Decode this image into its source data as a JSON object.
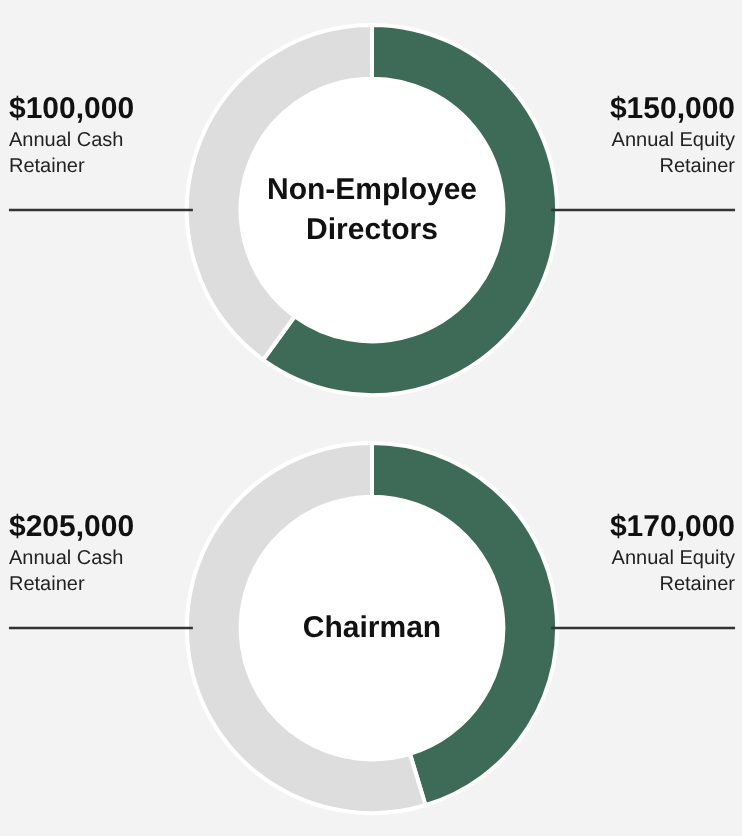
{
  "chart_data": [
    {
      "type": "donut",
      "title": "Non-Employee Directors",
      "categories": [
        "Annual Equity Retainer",
        "Annual Cash Retainer"
      ],
      "values": [
        150000,
        100000
      ],
      "value_labels": [
        "$150,000",
        "$100,000"
      ],
      "colors": [
        "#3e6b58",
        "#dddddd"
      ]
    },
    {
      "type": "donut",
      "title": "Chairman",
      "categories": [
        "Annual Equity Retainer",
        "Annual Cash Retainer"
      ],
      "values": [
        170000,
        205000
      ],
      "value_labels": [
        "$170,000",
        "$205,000"
      ],
      "colors": [
        "#3e6b58",
        "#dddddd"
      ]
    }
  ]
}
